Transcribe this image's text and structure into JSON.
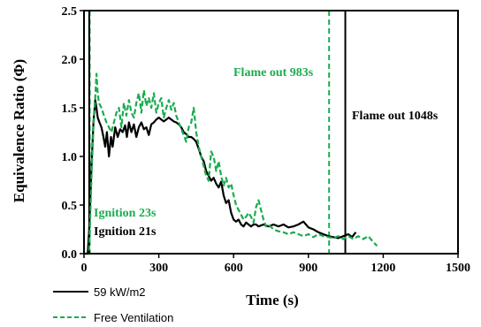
{
  "chart_data": {
    "type": "line",
    "xlabel": "Time (s)",
    "ylabel": "Equivalence Ratio (Φ)",
    "xlim": [
      0,
      1500
    ],
    "ylim": [
      0,
      2.5
    ],
    "x_ticks": [
      "0",
      "300",
      "600",
      "900",
      "1200",
      "1500"
    ],
    "y_ticks": [
      "0.0",
      "0.5",
      "1.0",
      "1.5",
      "2.0",
      "2.5"
    ],
    "grid": false,
    "legend_position": "bottom-left",
    "series": [
      {
        "name": "59 kW/m2",
        "color": "#000000",
        "style": "solid",
        "points": [
          [
            0,
            0.0
          ],
          [
            15,
            0.0
          ],
          [
            21,
            0.25
          ],
          [
            30,
            0.9
          ],
          [
            38,
            1.35
          ],
          [
            45,
            1.58
          ],
          [
            50,
            1.5
          ],
          [
            55,
            1.4
          ],
          [
            62,
            1.35
          ],
          [
            70,
            1.3
          ],
          [
            78,
            1.2
          ],
          [
            85,
            1.1
          ],
          [
            92,
            1.25
          ],
          [
            100,
            1.0
          ],
          [
            108,
            1.2
          ],
          [
            115,
            1.1
          ],
          [
            125,
            1.3
          ],
          [
            135,
            1.2
          ],
          [
            145,
            1.28
          ],
          [
            155,
            1.25
          ],
          [
            165,
            1.32
          ],
          [
            172,
            1.2
          ],
          [
            180,
            1.35
          ],
          [
            190,
            1.25
          ],
          [
            200,
            1.33
          ],
          [
            210,
            1.2
          ],
          [
            220,
            1.3
          ],
          [
            230,
            1.35
          ],
          [
            240,
            1.28
          ],
          [
            250,
            1.3
          ],
          [
            260,
            1.22
          ],
          [
            270,
            1.33
          ],
          [
            280,
            1.35
          ],
          [
            290,
            1.38
          ],
          [
            300,
            1.4
          ],
          [
            310,
            1.38
          ],
          [
            320,
            1.36
          ],
          [
            330,
            1.38
          ],
          [
            340,
            1.4
          ],
          [
            350,
            1.38
          ],
          [
            360,
            1.36
          ],
          [
            370,
            1.35
          ],
          [
            380,
            1.33
          ],
          [
            390,
            1.3
          ],
          [
            400,
            1.25
          ],
          [
            410,
            1.23
          ],
          [
            420,
            1.2
          ],
          [
            430,
            1.2
          ],
          [
            440,
            1.18
          ],
          [
            450,
            1.15
          ],
          [
            460,
            1.08
          ],
          [
            470,
            1.0
          ],
          [
            480,
            0.95
          ],
          [
            490,
            0.85
          ],
          [
            500,
            0.8
          ],
          [
            510,
            0.75
          ],
          [
            520,
            0.78
          ],
          [
            530,
            0.72
          ],
          [
            540,
            0.68
          ],
          [
            550,
            0.74
          ],
          [
            560,
            0.6
          ],
          [
            570,
            0.52
          ],
          [
            580,
            0.55
          ],
          [
            590,
            0.42
          ],
          [
            600,
            0.35
          ],
          [
            610,
            0.33
          ],
          [
            620,
            0.35
          ],
          [
            630,
            0.3
          ],
          [
            640,
            0.28
          ],
          [
            650,
            0.32
          ],
          [
            660,
            0.3
          ],
          [
            670,
            0.28
          ],
          [
            680,
            0.3
          ],
          [
            690,
            0.3
          ],
          [
            700,
            0.28
          ],
          [
            720,
            0.3
          ],
          [
            740,
            0.28
          ],
          [
            760,
            0.3
          ],
          [
            780,
            0.28
          ],
          [
            800,
            0.3
          ],
          [
            820,
            0.27
          ],
          [
            840,
            0.28
          ],
          [
            860,
            0.3
          ],
          [
            880,
            0.33
          ],
          [
            890,
            0.3
          ],
          [
            900,
            0.27
          ],
          [
            920,
            0.25
          ],
          [
            940,
            0.22
          ],
          [
            960,
            0.2
          ],
          [
            980,
            0.18
          ],
          [
            1000,
            0.17
          ],
          [
            1020,
            0.16
          ],
          [
            1040,
            0.18
          ],
          [
            1060,
            0.2
          ],
          [
            1075,
            0.17
          ],
          [
            1090,
            0.22
          ]
        ]
      },
      {
        "name": "Free Ventilation",
        "color": "#1aac4f",
        "style": "dashed",
        "points": [
          [
            0,
            0.0
          ],
          [
            20,
            0.0
          ],
          [
            23,
            0.2
          ],
          [
            30,
            0.8
          ],
          [
            38,
            1.3
          ],
          [
            45,
            1.6
          ],
          [
            50,
            1.85
          ],
          [
            55,
            1.65
          ],
          [
            60,
            1.55
          ],
          [
            70,
            1.5
          ],
          [
            80,
            1.42
          ],
          [
            90,
            1.35
          ],
          [
            100,
            1.3
          ],
          [
            110,
            1.25
          ],
          [
            120,
            1.35
          ],
          [
            130,
            1.45
          ],
          [
            140,
            1.5
          ],
          [
            150,
            1.3
          ],
          [
            160,
            1.55
          ],
          [
            170,
            1.42
          ],
          [
            180,
            1.58
          ],
          [
            190,
            1.45
          ],
          [
            200,
            1.4
          ],
          [
            210,
            1.55
          ],
          [
            220,
            1.65
          ],
          [
            230,
            1.45
          ],
          [
            240,
            1.68
          ],
          [
            250,
            1.52
          ],
          [
            260,
            1.6
          ],
          [
            270,
            1.5
          ],
          [
            280,
            1.65
          ],
          [
            290,
            1.45
          ],
          [
            300,
            1.55
          ],
          [
            310,
            1.6
          ],
          [
            320,
            1.4
          ],
          [
            330,
            1.5
          ],
          [
            340,
            1.58
          ],
          [
            350,
            1.48
          ],
          [
            360,
            1.55
          ],
          [
            370,
            1.42
          ],
          [
            380,
            1.35
          ],
          [
            390,
            1.28
          ],
          [
            400,
            1.22
          ],
          [
            410,
            1.15
          ],
          [
            420,
            1.3
          ],
          [
            430,
            1.35
          ],
          [
            440,
            1.5
          ],
          [
            450,
            1.25
          ],
          [
            460,
            1.1
          ],
          [
            470,
            1.0
          ],
          [
            480,
            0.9
          ],
          [
            490,
            0.8
          ],
          [
            500,
            0.75
          ],
          [
            510,
            1.05
          ],
          [
            520,
            1.0
          ],
          [
            530,
            0.85
          ],
          [
            540,
            0.95
          ],
          [
            550,
            0.8
          ],
          [
            560,
            0.7
          ],
          [
            570,
            0.78
          ],
          [
            580,
            0.68
          ],
          [
            590,
            0.72
          ],
          [
            600,
            0.6
          ],
          [
            610,
            0.5
          ],
          [
            620,
            0.45
          ],
          [
            630,
            0.4
          ],
          [
            640,
            0.35
          ],
          [
            650,
            0.38
          ],
          [
            660,
            0.42
          ],
          [
            670,
            0.38
          ],
          [
            680,
            0.32
          ],
          [
            690,
            0.48
          ],
          [
            700,
            0.55
          ],
          [
            710,
            0.45
          ],
          [
            720,
            0.35
          ],
          [
            730,
            0.28
          ],
          [
            740,
            0.3
          ],
          [
            760,
            0.25
          ],
          [
            780,
            0.23
          ],
          [
            800,
            0.22
          ],
          [
            820,
            0.2
          ],
          [
            840,
            0.22
          ],
          [
            860,
            0.2
          ],
          [
            880,
            0.18
          ],
          [
            900,
            0.2
          ],
          [
            920,
            0.17
          ],
          [
            940,
            0.2
          ],
          [
            960,
            0.18
          ],
          [
            980,
            0.17
          ],
          [
            1000,
            0.16
          ],
          [
            1020,
            0.18
          ],
          [
            1040,
            0.15
          ],
          [
            1060,
            0.18
          ],
          [
            1080,
            0.15
          ],
          [
            1100,
            0.18
          ],
          [
            1120,
            0.15
          ],
          [
            1140,
            0.18
          ],
          [
            1160,
            0.12
          ],
          [
            1175,
            0.08
          ]
        ]
      }
    ],
    "vlines": [
      {
        "x": 23,
        "color": "#1aac4f",
        "style": "dashed"
      },
      {
        "x": 21,
        "color": "#000000",
        "style": "solid"
      },
      {
        "x": 983,
        "color": "#1aac4f",
        "style": "dashed"
      },
      {
        "x": 1048,
        "color": "#000000",
        "style": "solid"
      }
    ],
    "annotations": [
      {
        "id": "flame-out-983",
        "text": "Flame out 983s",
        "color": "#1aac4f"
      },
      {
        "id": "flame-out-1048",
        "text": "Flame out 1048s",
        "color": "#000000"
      },
      {
        "id": "ignition-23",
        "text": "Ignition 23s",
        "color": "#1aac4f"
      },
      {
        "id": "ignition-21",
        "text": "Ignition 21s",
        "color": "#000000"
      }
    ]
  }
}
